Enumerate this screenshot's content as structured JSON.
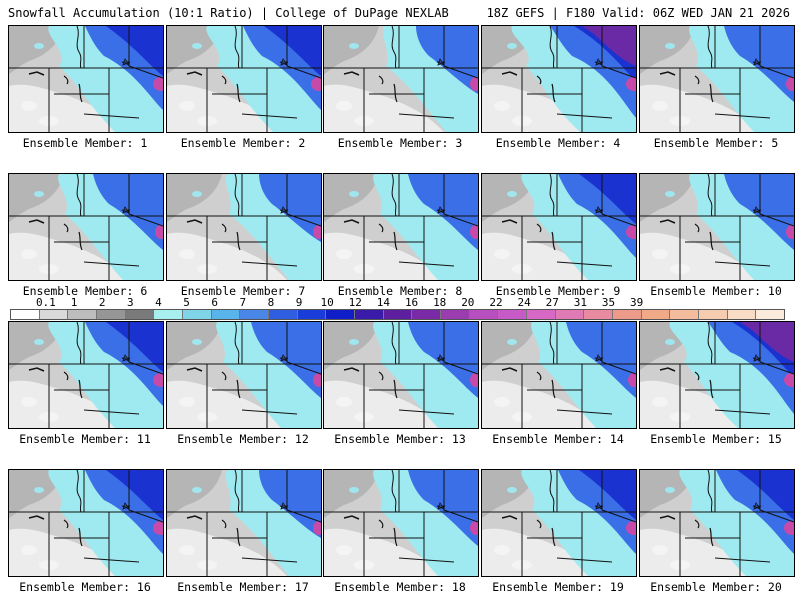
{
  "header": {
    "title_left": "Snowfall Accumulation (10:1 Ratio) | College of DuPage NEXLAB",
    "title_right": "18Z GEFS | F180 Valid: 06Z WED JAN 21 2026"
  },
  "legend": {
    "labels": [
      "0.1",
      "1",
      "2",
      "3",
      "4",
      "5",
      "6",
      "7",
      "8",
      "9",
      "10",
      "12",
      "14",
      "16",
      "18",
      "20",
      "22",
      "24",
      "27",
      "31",
      "35",
      "39"
    ],
    "colors": [
      "#ffffff",
      "#d9d9d9",
      "#bdbdbd",
      "#969696",
      "#7a7a7a",
      "#a8f0f0",
      "#7fd4e8",
      "#5ab4ec",
      "#4a86e8",
      "#2f5fe0",
      "#1a3cd8",
      "#0f1ec8",
      "#3a1aa8",
      "#5e1ea0",
      "#7a2aa6",
      "#9b3cb0",
      "#b84fbe",
      "#c75ac6",
      "#d868c6",
      "#e07ab4",
      "#e88aa0",
      "#ec9a8a",
      "#f0aa88",
      "#f3bc9c",
      "#f6ccb0",
      "#f8dcc6",
      "#fbebdc"
    ]
  },
  "panels": [
    {
      "label": "Ensemble Member: 1",
      "intensity": 3
    },
    {
      "label": "Ensemble Member: 2",
      "intensity": 3
    },
    {
      "label": "Ensemble Member: 3",
      "intensity": 1
    },
    {
      "label": "Ensemble Member: 4",
      "intensity": 4
    },
    {
      "label": "Ensemble Member: 5",
      "intensity": 2
    },
    {
      "label": "Ensemble Member: 6",
      "intensity": 2
    },
    {
      "label": "Ensemble Member: 7",
      "intensity": 1
    },
    {
      "label": "Ensemble Member: 8",
      "intensity": 2
    },
    {
      "label": "Ensemble Member: 9",
      "intensity": 3
    },
    {
      "label": "Ensemble Member: 10",
      "intensity": 2
    },
    {
      "label": "Ensemble Member: 11",
      "intensity": 3
    },
    {
      "label": "Ensemble Member: 12",
      "intensity": 2
    },
    {
      "label": "Ensemble Member: 13",
      "intensity": 2
    },
    {
      "label": "Ensemble Member: 14",
      "intensity": 2
    },
    {
      "label": "Ensemble Member: 15",
      "intensity": 4
    },
    {
      "label": "Ensemble Member: 16",
      "intensity": 3
    },
    {
      "label": "Ensemble Member: 17",
      "intensity": 1
    },
    {
      "label": "Ensemble Member: 18",
      "intensity": 2
    },
    {
      "label": "Ensemble Member: 19",
      "intensity": 3
    },
    {
      "label": "Ensemble Member: 20",
      "intensity": 3
    }
  ]
}
